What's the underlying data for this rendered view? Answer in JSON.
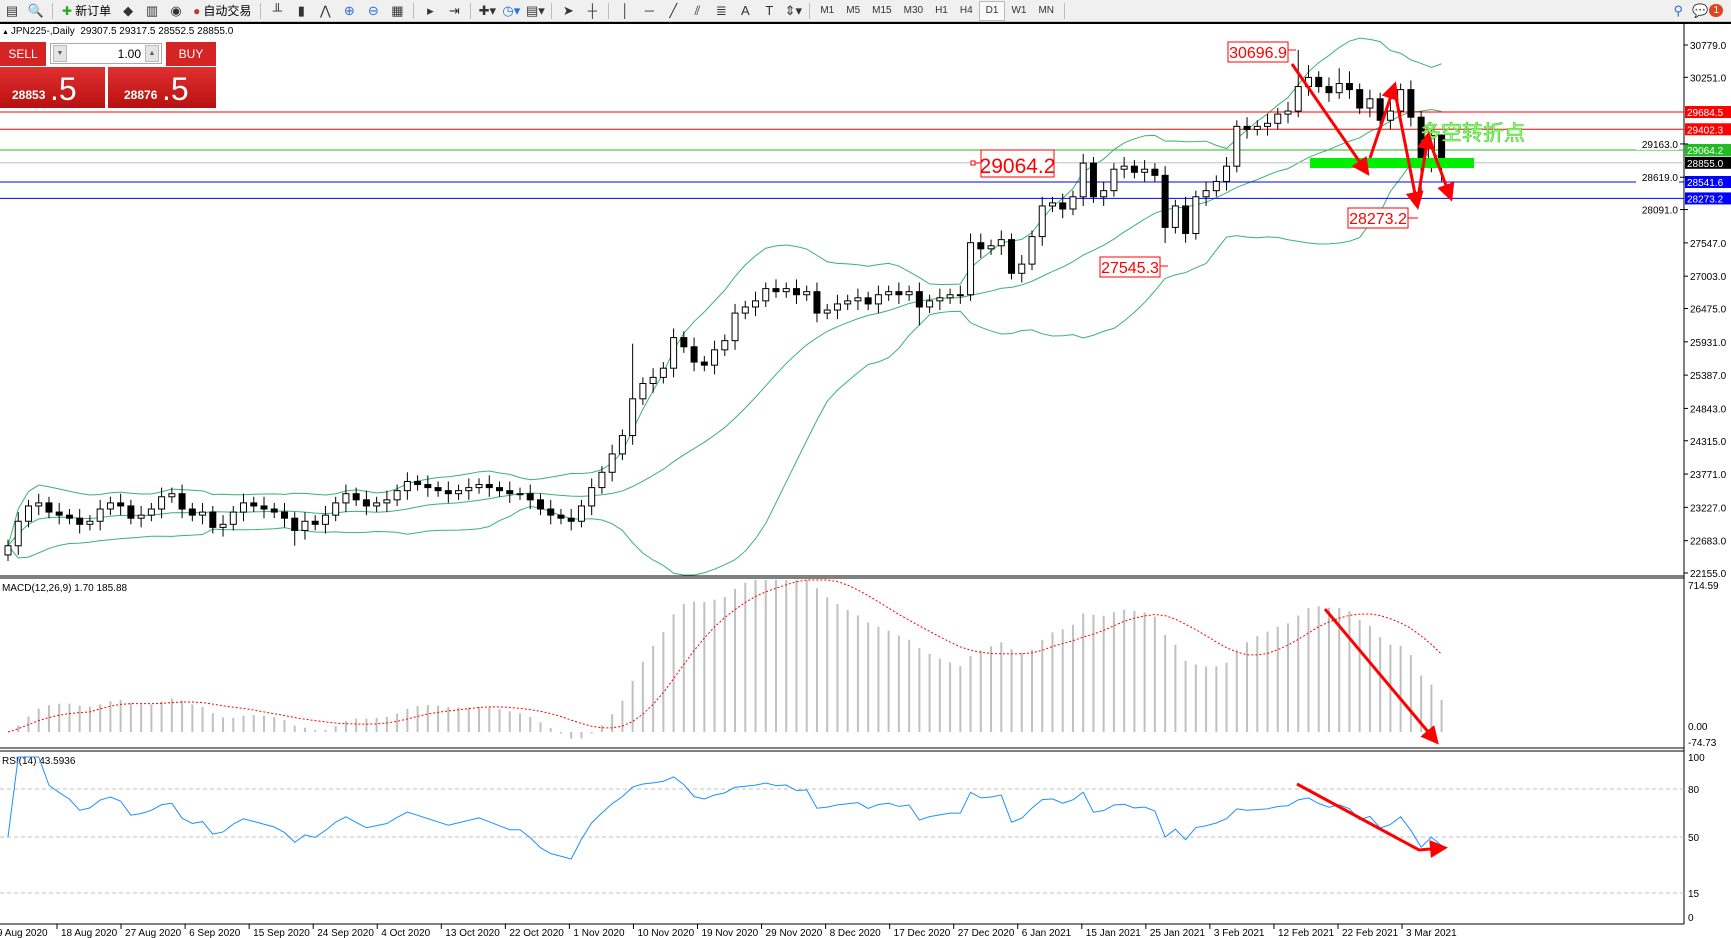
{
  "toolbar": {
    "new_order_label": "新订单",
    "auto_trading_label": "自动交易",
    "icons": [
      "chart-icon",
      "zoom-view-icon",
      "new-order-icon",
      "expert-icon",
      "history-icon",
      "signal-icon",
      "auto-trading-icon",
      "bar-chart-icon",
      "candlestick-icon",
      "line-chart-icon",
      "zoom-in-icon",
      "zoom-out-icon",
      "tile-windows-icon",
      "auto-scroll-icon",
      "chart-shift-icon",
      "indicators-icon",
      "periods-icon",
      "templates-icon",
      "cursor-icon",
      "crosshair-icon",
      "vertical-line-icon",
      "horizontal-line-icon",
      "trendline-icon",
      "equidistant-channel-icon",
      "fibonacci-icon",
      "text-icon",
      "text-label-icon",
      "arrows-icon"
    ],
    "timeframes": [
      "M1",
      "M5",
      "M15",
      "M30",
      "H1",
      "H4",
      "D1",
      "W1",
      "MN"
    ],
    "active_timeframe": "D1",
    "notification_count": "1"
  },
  "chart_header": {
    "symbol": "JPN225-,Daily",
    "ohlc": "29307.5 29317.5 28552.5 28855.0"
  },
  "trade_panel": {
    "sell_label": "SELL",
    "buy_label": "BUY",
    "lot": "1.00",
    "sell_price_main": "28853",
    "sell_price_frac": ".5",
    "buy_price_main": "28876",
    "buy_price_frac": ".5"
  },
  "price_axis": [
    "30779.0",
    "30251.0",
    "29163.0",
    "28619.0",
    "28091.0",
    "27547.0",
    "27003.0",
    "26475.0",
    "25931.0",
    "25387.0",
    "24843.0",
    "24315.0",
    "23771.0",
    "23227.0",
    "22683.0",
    "22155.0"
  ],
  "levels": [
    {
      "price": 29684.5,
      "label": "29684.5",
      "color": "#ff0000"
    },
    {
      "price": 29402.3,
      "label": "29402.3",
      "color": "#ff0000"
    },
    {
      "price": 29064.2,
      "label": "29064.2",
      "color": "#22bb22"
    },
    {
      "price": 28855.0,
      "label": "28855.0",
      "color": "#000000",
      "line": "#c0c0c0"
    },
    {
      "price": 28541.6,
      "label": "28541.6",
      "color": "#0000ff"
    },
    {
      "price": 28273.2,
      "label": "28273.2",
      "color": "#0000ff"
    }
  ],
  "annotations": {
    "high_label": "30696.9",
    "level_label": "29064.2",
    "low_label": "27545.3",
    "support_label": "28273.2",
    "turning_point_text": "多空转折点",
    "arrow_color": "#ff0000",
    "zone_color": "#00ee00"
  },
  "macd": {
    "label": "MACD(12,26,9) 1.70 185.88",
    "axis": [
      "714.59",
      "0.00",
      "-74.73"
    ],
    "histogram_color": "#c0c0c0",
    "signal_color": "#ff0000"
  },
  "rsi": {
    "label": "RSI(14) 43.5936",
    "axis": [
      "100",
      "80",
      "50",
      "15",
      "0"
    ],
    "color": "#1e90ff"
  },
  "dates": [
    "9 Aug 2020",
    "18 Aug 2020",
    "27 Aug 2020",
    "6 Sep 2020",
    "15 Sep 2020",
    "24 Sep 2020",
    "4 Oct 2020",
    "13 Oct 2020",
    "22 Oct 2020",
    "1 Nov 2020",
    "10 Nov 2020",
    "19 Nov 2020",
    "29 Nov 2020",
    "8 Dec 2020",
    "17 Dec 2020",
    "27 Dec 2020",
    "6 Jan 2021",
    "15 Jan 2021",
    "25 Jan 2021",
    "3 Feb 2021",
    "12 Feb 2021",
    "22 Feb 2021",
    "3 Mar 2021"
  ],
  "chart_data": {
    "type": "candlestick",
    "symbol": "JPN225-",
    "timeframe": "Daily",
    "ylim": [
      22155.0,
      30779.0
    ],
    "bollinger_color": "#3cb371",
    "candles": [
      [
        22450,
        22700,
        22350,
        22600
      ],
      [
        22600,
        23150,
        22450,
        23000
      ],
      [
        23000,
        23350,
        22900,
        23250
      ],
      [
        23250,
        23450,
        23100,
        23300
      ],
      [
        23300,
        23400,
        23050,
        23150
      ],
      [
        23150,
        23300,
        22950,
        23100
      ],
      [
        23100,
        23200,
        22950,
        23050
      ],
      [
        23050,
        23200,
        22800,
        22950
      ],
      [
        22950,
        23100,
        22850,
        23000
      ],
      [
        23000,
        23350,
        22850,
        23200
      ],
      [
        23200,
        23400,
        23100,
        23300
      ],
      [
        23300,
        23450,
        23100,
        23250
      ],
      [
        23250,
        23350,
        22950,
        23050
      ],
      [
        23050,
        23250,
        22900,
        23100
      ],
      [
        23100,
        23300,
        23000,
        23200
      ],
      [
        23200,
        23550,
        23050,
        23400
      ],
      [
        23400,
        23550,
        23300,
        23450
      ],
      [
        23450,
        23600,
        23050,
        23200
      ],
      [
        23200,
        23300,
        23000,
        23100
      ],
      [
        23100,
        23300,
        22950,
        23150
      ],
      [
        23150,
        23250,
        22800,
        22900
      ],
      [
        22900,
        23100,
        22750,
        22950
      ],
      [
        22950,
        23250,
        22850,
        23150
      ],
      [
        23150,
        23450,
        23000,
        23300
      ],
      [
        23300,
        23400,
        23150,
        23250
      ],
      [
        23250,
        23400,
        23050,
        23200
      ],
      [
        23200,
        23300,
        23050,
        23150
      ],
      [
        23150,
        23300,
        22900,
        23050
      ],
      [
        23050,
        23150,
        22600,
        22850
      ],
      [
        22850,
        23150,
        22700,
        23000
      ],
      [
        23000,
        23100,
        22850,
        22950
      ],
      [
        22950,
        23250,
        22800,
        23100
      ],
      [
        23100,
        23400,
        23000,
        23300
      ],
      [
        23300,
        23600,
        23150,
        23450
      ],
      [
        23450,
        23550,
        23250,
        23350
      ],
      [
        23350,
        23500,
        23100,
        23250
      ],
      [
        23250,
        23400,
        23150,
        23300
      ],
      [
        23300,
        23500,
        23150,
        23350
      ],
      [
        23350,
        23600,
        23250,
        23500
      ],
      [
        23500,
        23800,
        23350,
        23650
      ],
      [
        23650,
        23750,
        23500,
        23600
      ],
      [
        23600,
        23750,
        23400,
        23550
      ],
      [
        23550,
        23650,
        23400,
        23500
      ],
      [
        23500,
        23650,
        23300,
        23450
      ],
      [
        23450,
        23600,
        23350,
        23500
      ],
      [
        23500,
        23700,
        23350,
        23550
      ],
      [
        23550,
        23700,
        23450,
        23600
      ],
      [
        23600,
        23750,
        23400,
        23550
      ],
      [
        23550,
        23650,
        23400,
        23500
      ],
      [
        23500,
        23650,
        23300,
        23450
      ],
      [
        23450,
        23550,
        23350,
        23450
      ],
      [
        23450,
        23600,
        23200,
        23350
      ],
      [
        23350,
        23450,
        23100,
        23200
      ],
      [
        23200,
        23350,
        22950,
        23100
      ],
      [
        23100,
        23200,
        22950,
        23050
      ],
      [
        23050,
        23200,
        22850,
        23000
      ],
      [
        23000,
        23350,
        22900,
        23250
      ],
      [
        23250,
        23700,
        23100,
        23550
      ],
      [
        23550,
        23900,
        23450,
        23800
      ],
      [
        23800,
        24250,
        23650,
        24100
      ],
      [
        24100,
        24500,
        24000,
        24400
      ],
      [
        24400,
        25900,
        24250,
        25000
      ],
      [
        25000,
        25350,
        24900,
        25250
      ],
      [
        25250,
        25500,
        25100,
        25350
      ],
      [
        25350,
        25600,
        25250,
        25500
      ],
      [
        25500,
        26150,
        25350,
        26000
      ],
      [
        26000,
        26100,
        25750,
        25850
      ],
      [
        25850,
        26000,
        25450,
        25600
      ],
      [
        25600,
        25700,
        25450,
        25550
      ],
      [
        25550,
        25950,
        25400,
        25800
      ],
      [
        25800,
        26050,
        25700,
        25950
      ],
      [
        25950,
        26550,
        25800,
        26400
      ],
      [
        26400,
        26600,
        26300,
        26500
      ],
      [
        26500,
        26750,
        26350,
        26600
      ],
      [
        26600,
        26900,
        26500,
        26800
      ],
      [
        26800,
        26950,
        26650,
        26750
      ],
      [
        26750,
        26900,
        26650,
        26800
      ],
      [
        26800,
        26950,
        26550,
        26700
      ],
      [
        26700,
        26850,
        26600,
        26750
      ],
      [
        26750,
        26900,
        26250,
        26400
      ],
      [
        26400,
        26550,
        26300,
        26450
      ],
      [
        26450,
        26700,
        26300,
        26550
      ],
      [
        26550,
        26700,
        26450,
        26600
      ],
      [
        26600,
        26800,
        26450,
        26650
      ],
      [
        26650,
        26750,
        26450,
        26550
      ],
      [
        26550,
        26850,
        26400,
        26700
      ],
      [
        26700,
        26850,
        26600,
        26750
      ],
      [
        26750,
        26900,
        26550,
        26700
      ],
      [
        26700,
        26850,
        26600,
        26750
      ],
      [
        26750,
        26900,
        26200,
        26500
      ],
      [
        26500,
        26700,
        26400,
        26600
      ],
      [
        26600,
        26800,
        26450,
        26650
      ],
      [
        26650,
        26800,
        26550,
        26700
      ],
      [
        26700,
        26850,
        26550,
        26700
      ],
      [
        26700,
        27700,
        26600,
        27550
      ],
      [
        27550,
        27700,
        27300,
        27450
      ],
      [
        27450,
        27600,
        27350,
        27500
      ],
      [
        27500,
        27750,
        27350,
        27600
      ],
      [
        27600,
        27700,
        26950,
        27050
      ],
      [
        27050,
        27350,
        26900,
        27200
      ],
      [
        27200,
        27750,
        27100,
        27650
      ],
      [
        27650,
        28300,
        27500,
        28150
      ],
      [
        28150,
        28300,
        28050,
        28200
      ],
      [
        28200,
        28350,
        27950,
        28100
      ],
      [
        28100,
        28400,
        28000,
        28300
      ],
      [
        28300,
        29000,
        28150,
        28850
      ],
      [
        28850,
        28950,
        28200,
        28300
      ],
      [
        28300,
        28550,
        28150,
        28400
      ],
      [
        28400,
        28850,
        28300,
        28750
      ],
      [
        28750,
        28950,
        28600,
        28800
      ],
      [
        28800,
        28900,
        28600,
        28700
      ],
      [
        28700,
        28900,
        28550,
        28750
      ],
      [
        28750,
        28850,
        28550,
        28650
      ],
      [
        28650,
        28800,
        27545.3,
        27800
      ],
      [
        27800,
        28250,
        27700,
        28150
      ],
      [
        28150,
        28300,
        27550,
        27700
      ],
      [
        27700,
        28400,
        27600,
        28300
      ],
      [
        28300,
        28550,
        28150,
        28400
      ],
      [
        28400,
        28650,
        28300,
        28550
      ],
      [
        28550,
        28950,
        28400,
        28800
      ],
      [
        28800,
        29550,
        28700,
        29450
      ],
      [
        29450,
        29600,
        29250,
        29400
      ],
      [
        29400,
        29550,
        29300,
        29450
      ],
      [
        29450,
        29650,
        29300,
        29500
      ],
      [
        29500,
        29750,
        29400,
        29650
      ],
      [
        29650,
        29850,
        29500,
        29700
      ],
      [
        29700,
        30696.9,
        29600,
        30100
      ],
      [
        30100,
        30450,
        29950,
        30250
      ],
      [
        30250,
        30350,
        30000,
        30100
      ],
      [
        30100,
        30250,
        29850,
        30000
      ],
      [
        30000,
        30400,
        29900,
        30150
      ],
      [
        30150,
        30350,
        29900,
        30050
      ],
      [
        30050,
        30150,
        29650,
        29750
      ],
      [
        29750,
        30050,
        29600,
        29900
      ],
      [
        29900,
        30000,
        29450,
        29550
      ],
      [
        29550,
        29850,
        29400,
        29700
      ],
      [
        29700,
        30150,
        29600,
        30050
      ],
      [
        30050,
        30200,
        29450,
        29600
      ],
      [
        29600,
        29700,
        28273.2,
        28850
      ],
      [
        28850,
        29400,
        28700,
        29300
      ],
      [
        29307.5,
        29317.5,
        28552.5,
        28855.0
      ]
    ]
  }
}
